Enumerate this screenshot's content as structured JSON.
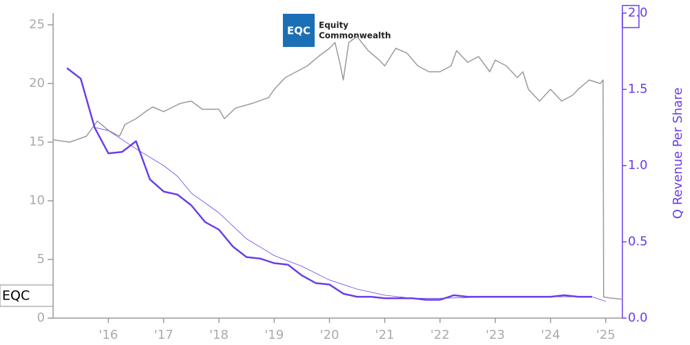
{
  "chart_data": {
    "type": "line",
    "logo": {
      "mark": "EQC",
      "lines": [
        "Equity",
        "Commonwealth"
      ]
    },
    "y2_label": "Q Revenue Per Share",
    "xlim": [
      2015.0,
      2025.3
    ],
    "xticks": [
      {
        "value": 2016,
        "label": "'16"
      },
      {
        "value": 2017,
        "label": "'17"
      },
      {
        "value": 2018,
        "label": "'18"
      },
      {
        "value": 2019,
        "label": "'19"
      },
      {
        "value": 2020,
        "label": "'20"
      },
      {
        "value": 2021,
        "label": "'21"
      },
      {
        "value": 2022,
        "label": "'22"
      },
      {
        "value": 2023,
        "label": "'23"
      },
      {
        "value": 2024,
        "label": "'24"
      },
      {
        "value": 2025,
        "label": "'25"
      }
    ],
    "ylim": [
      0,
      26
    ],
    "yticks": [
      0,
      5,
      10,
      15,
      20,
      25
    ],
    "y2lim": [
      0,
      2.0
    ],
    "y2ticks": [
      {
        "value": 0,
        "label": "0.0"
      },
      0.5,
      {
        "value": 1,
        "label": "1.0"
      },
      1.5,
      {
        "value": 2,
        "label": "2.0"
      }
    ],
    "series": [
      {
        "name": "EQC",
        "color": "#999999",
        "width": 1.5,
        "x": [
          2015.0,
          2015.3,
          2015.6,
          2015.8,
          2016.0,
          2016.2,
          2016.3,
          2016.5,
          2016.7,
          2016.8,
          2017.0,
          2017.3,
          2017.5,
          2017.7,
          2018.0,
          2018.1,
          2018.3,
          2018.6,
          2018.9,
          2019.0,
          2019.2,
          2019.4,
          2019.6,
          2019.8,
          2020.0,
          2020.1,
          2020.2,
          2020.25,
          2020.35,
          2020.5,
          2020.7,
          2020.9,
          2021.0,
          2021.2,
          2021.4,
          2021.6,
          2021.8,
          2022.0,
          2022.2,
          2022.3,
          2022.5,
          2022.7,
          2022.9,
          2023.0,
          2023.2,
          2023.4,
          2023.5,
          2023.6,
          2023.8,
          2024.0,
          2024.2,
          2024.4,
          2024.5,
          2024.7,
          2024.9,
          2024.95,
          2024.96,
          2025.1,
          2025.3
        ],
        "values": [
          15.2,
          15.0,
          15.5,
          16.8,
          16.0,
          15.5,
          16.5,
          17.0,
          17.7,
          18.0,
          17.6,
          18.3,
          18.5,
          17.8,
          17.8,
          17.0,
          17.9,
          18.3,
          18.8,
          19.5,
          20.5,
          21.0,
          21.5,
          22.3,
          23.0,
          23.5,
          21.5,
          20.3,
          23.5,
          24.0,
          22.8,
          22.0,
          21.5,
          23.0,
          22.6,
          21.5,
          21.0,
          21.0,
          21.5,
          22.8,
          21.8,
          22.3,
          21.0,
          22.0,
          21.5,
          20.5,
          21.0,
          19.5,
          18.5,
          19.5,
          18.5,
          19.0,
          19.5,
          20.3,
          20.0,
          20.3,
          1.8,
          1.7,
          1.6
        ]
      },
      {
        "name": "Q Revenue Per Share",
        "color": "#6a3de8",
        "width": 2.5,
        "axis": "y2",
        "x": [
          2015.25,
          2015.5,
          2015.75,
          2016.0,
          2016.25,
          2016.5,
          2016.75,
          2017.0,
          2017.25,
          2017.5,
          2017.75,
          2018.0,
          2018.25,
          2018.5,
          2018.75,
          2019.0,
          2019.25,
          2019.5,
          2019.75,
          2020.0,
          2020.25,
          2020.5,
          2020.75,
          2021.0,
          2021.25,
          2021.5,
          2021.75,
          2022.0,
          2022.25,
          2022.5,
          2022.75,
          2023.0,
          2023.25,
          2023.5,
          2023.75,
          2024.0,
          2024.25,
          2024.5,
          2024.75
        ],
        "values": [
          1.64,
          1.57,
          1.25,
          1.08,
          1.09,
          1.16,
          0.91,
          0.83,
          0.81,
          0.74,
          0.63,
          0.58,
          0.47,
          0.4,
          0.39,
          0.36,
          0.35,
          0.28,
          0.23,
          0.22,
          0.16,
          0.14,
          0.14,
          0.13,
          0.13,
          0.13,
          0.12,
          0.12,
          0.15,
          0.14,
          0.14,
          0.14,
          0.14,
          0.14,
          0.14,
          0.14,
          0.15,
          0.14,
          0.14
        ]
      },
      {
        "color": "#6a3de8",
        "width": 0.8,
        "axis": "y2",
        "x": [
          2015.75,
          2016.0,
          2016.5,
          2017.0,
          2017.25,
          2017.5,
          2018.0,
          2018.5,
          2019.0,
          2019.5,
          2020.0,
          2020.5,
          2021.0,
          2021.5,
          2022.0,
          2023.0,
          2024.0,
          2024.75,
          2025.0
        ],
        "values": [
          1.25,
          1.23,
          1.11,
          1.0,
          0.93,
          0.82,
          0.69,
          0.52,
          0.41,
          0.34,
          0.25,
          0.19,
          0.15,
          0.13,
          0.13,
          0.14,
          0.14,
          0.14,
          0.11
        ]
      }
    ]
  }
}
